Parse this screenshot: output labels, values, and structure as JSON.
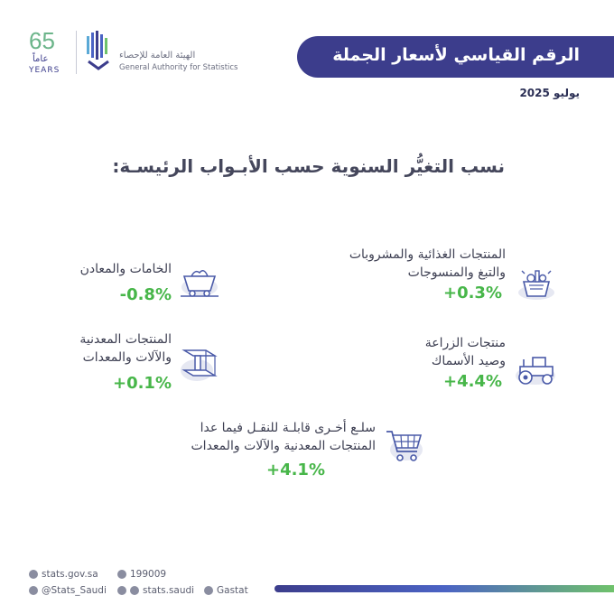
{
  "header": {
    "anniversary_number": "65",
    "anniversary_word": "عاماً",
    "anniversary_en": "YEARS",
    "org_name_ar": "الهيئة العامة للإحصاء",
    "org_name_en": "General Authority for Statistics"
  },
  "title": "الرقم القياسي لأسعار الجملة",
  "date": "يوليو 2025",
  "subtitle": "نسب التغيُّر السنوية حسب الأبـواب الرئيسـة:",
  "colors": {
    "accent": "#3c3d8c",
    "positive": "#47b649",
    "negative": "#47b649",
    "icon": "#4a5aa8"
  },
  "categories": [
    {
      "line1": "المنتجات الغذائية والمشروبات",
      "line2": "والتبغ والمنسوجات",
      "value": "+0.3%",
      "icon": "food-basket-icon"
    },
    {
      "line1": "الخامات والمعادن",
      "line2": "",
      "value": "-0.8%",
      "icon": "mine-cart-icon"
    },
    {
      "line1": "منتجات الزراعة",
      "line2": "وصيد الأسماك",
      "value": "+4.4%",
      "icon": "tractor-icon"
    },
    {
      "line1": "المنتجات المعدنية",
      "line2": "والآلات والمعدات",
      "value": "+0.1%",
      "icon": "steel-beam-icon"
    },
    {
      "line1": "سلـع أخـرى قابلـة للنقـل فيما عدا",
      "line2": "المنتجات المعدنية والآلات والمعدات",
      "value": "+4.1%",
      "icon": "shopping-cart-icon"
    }
  ],
  "footer": {
    "website": "stats.gov.sa",
    "phone": "199009",
    "x_handle": "@Stats_Saudi",
    "social": "stats.saudi",
    "linkedin": "Gastat"
  }
}
